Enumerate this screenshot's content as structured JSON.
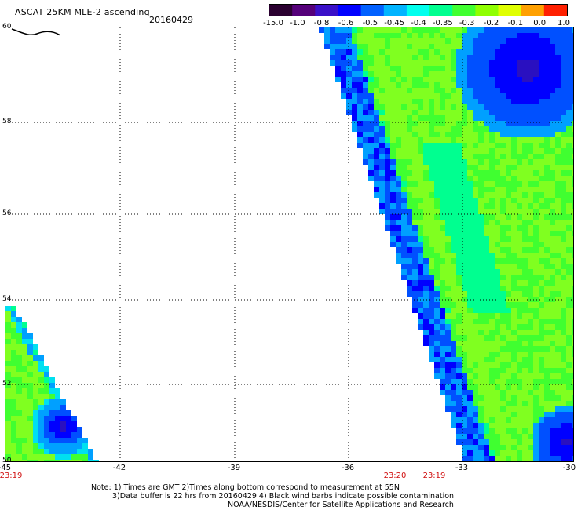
{
  "header": {
    "title": "ASCAT 25KM MLE-2 ascending",
    "date": "20160429"
  },
  "colorbar": {
    "labels": [
      "-15.0",
      "-1.0",
      "-0.8",
      "-0.6",
      "-0.5",
      "-0.45",
      "-0.4",
      "-0.35",
      "-0.3",
      "-0.2",
      "-0.1",
      "0.0",
      "1.0"
    ],
    "colors": [
      "#2a0030",
      "#55007a",
      "#3a10c8",
      "#0000ff",
      "#0060ff",
      "#00b4ff",
      "#00ffee",
      "#00ff90",
      "#40ff30",
      "#90ff00",
      "#e0ff00",
      "#ffa000",
      "#ff2000"
    ]
  },
  "axes": {
    "x_labels": [
      "-45",
      "-42",
      "-39",
      "-36",
      "-33",
      "-30"
    ],
    "y_labels": [
      "50",
      "52",
      "54",
      "56",
      "58",
      "60"
    ]
  },
  "times": {
    "left": "23:19",
    "mid": "23:20",
    "right": "23:19"
  },
  "notes": {
    "line1": "Note: 1) Times are GMT 2)Times along bottom correspond to measurement at 55N",
    "line2": "3)Data buffer is 22 hrs from 20160429 4) Black wind barbs indicate possible contamination",
    "line3": "NOAA/NESDIS/Center for Satellite Applications and Research"
  }
}
